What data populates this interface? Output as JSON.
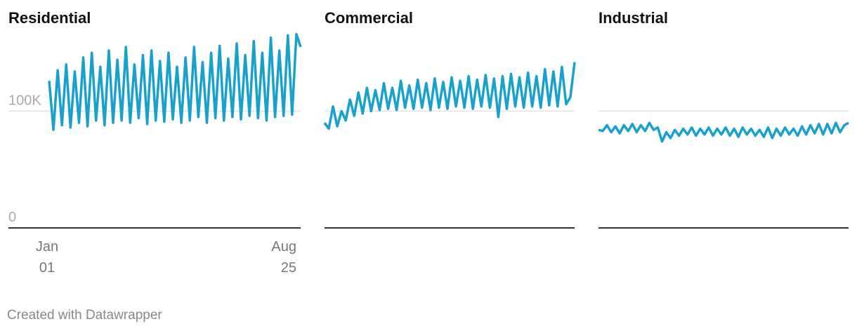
{
  "chart_data": {
    "type": "line",
    "categories": [
      "Jan 01",
      null,
      null,
      null,
      null,
      null,
      null,
      null,
      null,
      null,
      null,
      null,
      null,
      null,
      null,
      null,
      null,
      null,
      null,
      null,
      null,
      null,
      null,
      null,
      null,
      null,
      null,
      null,
      null,
      null,
      null,
      null,
      null,
      null,
      null,
      null,
      null,
      null,
      null,
      null,
      null,
      null,
      null,
      null,
      null,
      null,
      null,
      null,
      null,
      null,
      null,
      null,
      null,
      null,
      null,
      null,
      null,
      null,
      null,
      "Aug 25"
    ],
    "ylim": [
      0,
      170000
    ],
    "yticks": [
      0,
      {
        "value": 100000,
        "label": "100K"
      }
    ],
    "grid": true,
    "series": [
      {
        "name": "Residential",
        "color": "#18a1cd",
        "values": [
          126000,
          84000,
          135000,
          88000,
          140000,
          86000,
          134000,
          90000,
          146000,
          87000,
          150000,
          92000,
          138000,
          88000,
          152000,
          90000,
          144000,
          92000,
          155000,
          90000,
          140000,
          94000,
          148000,
          89000,
          152000,
          92000,
          143000,
          91000,
          150000,
          93000,
          138000,
          90000,
          146000,
          92000,
          155000,
          95000,
          142000,
          90000,
          150000,
          94000,
          156000,
          92000,
          145000,
          95000,
          158000,
          93000,
          148000,
          96000,
          160000,
          94000,
          150000,
          92000,
          163000,
          95000,
          152000,
          96000,
          165000,
          97000,
          166000,
          155000
        ]
      },
      {
        "name": "Commercial",
        "color": "#18a1cd",
        "values": [
          90000,
          85000,
          104000,
          87000,
          100000,
          92000,
          110000,
          96000,
          116000,
          98000,
          120000,
          100000,
          118000,
          101000,
          124000,
          102000,
          120000,
          101000,
          126000,
          103000,
          122000,
          102000,
          127000,
          103000,
          124000,
          101000,
          128000,
          103000,
          125000,
          102000,
          129000,
          104000,
          126000,
          103000,
          130000,
          102000,
          127000,
          104000,
          131000,
          103000,
          128000,
          95000,
          130000,
          102000,
          132000,
          104000,
          129000,
          103000,
          133000,
          104000,
          130000,
          103000,
          136000,
          105000,
          134000,
          104000,
          138000,
          106000,
          112000,
          142000
        ]
      },
      {
        "name": "Industrial",
        "color": "#18a1cd",
        "values": [
          84000,
          83000,
          88000,
          82000,
          87000,
          81000,
          88000,
          83000,
          89000,
          82000,
          88000,
          83000,
          90000,
          84000,
          86000,
          74000,
          82000,
          77000,
          84000,
          79000,
          85000,
          80000,
          86000,
          79000,
          85000,
          80000,
          86000,
          79000,
          85000,
          80000,
          86000,
          79000,
          85000,
          78000,
          86000,
          80000,
          85000,
          79000,
          84000,
          78000,
          86000,
          77000,
          85000,
          79000,
          86000,
          80000,
          85000,
          79000,
          87000,
          80000,
          88000,
          81000,
          89000,
          80000,
          89000,
          81000,
          90000,
          82000,
          88000,
          90000
        ]
      }
    ]
  },
  "footer": {
    "credit": "Created with Datawrapper"
  }
}
